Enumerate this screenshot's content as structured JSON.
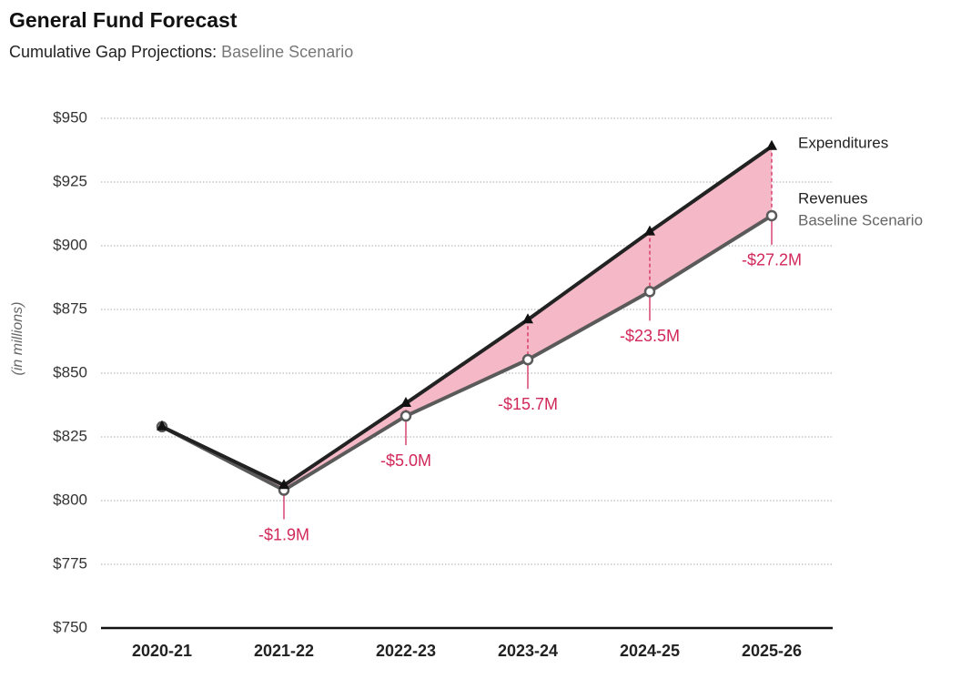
{
  "chart_data": {
    "type": "line",
    "title": "General Fund Forecast",
    "subtitle": "Cumulative Gap Projections:",
    "subtitle_scenario": "Baseline Scenario",
    "y_label": "(in millions)",
    "categories": [
      "2020-21",
      "2021-22",
      "2022-23",
      "2023-24",
      "2024-25",
      "2025-26"
    ],
    "series": [
      {
        "name": "Expenditures",
        "color": "#222222",
        "marker": "triangle",
        "values": [
          829,
          806,
          838.2,
          871,
          905.5,
          939
        ]
      },
      {
        "name": "Revenues",
        "scenario": "Baseline Scenario",
        "color": "#5a5a5a",
        "marker": "circle",
        "values": [
          829,
          804.1,
          833.2,
          855.3,
          882,
          911.8
        ]
      }
    ],
    "gap": {
      "color": "#d1285a",
      "fill": "#f5b8c6",
      "values": [
        null,
        -1.9,
        -5.0,
        -15.7,
        -23.5,
        -27.2
      ],
      "value_labels": [
        null,
        "-$1.9M",
        "-$5.0M",
        "-$15.7M",
        "-$23.5M",
        "-$27.2M"
      ]
    },
    "ylim": [
      750,
      950
    ],
    "yticks": [
      {
        "value": 750,
        "label": "$750"
      },
      {
        "value": 775,
        "label": "$775"
      },
      {
        "value": 800,
        "label": "$800"
      },
      {
        "value": 825,
        "label": "$825"
      },
      {
        "value": 850,
        "label": "$850"
      },
      {
        "value": 875,
        "label": "$875"
      },
      {
        "value": 900,
        "label": "$900"
      },
      {
        "value": 925,
        "label": "$925"
      },
      {
        "value": 950,
        "label": "$950"
      }
    ],
    "grid": true
  }
}
